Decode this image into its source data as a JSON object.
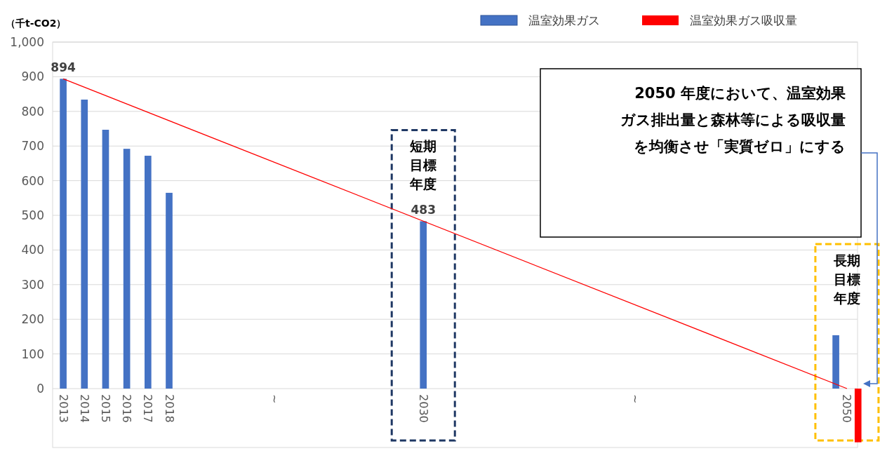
{
  "chart_data": {
    "type": "bar",
    "ylabel": "（千t-CO2）",
    "categories": [
      "2013",
      "2014",
      "2015",
      "2016",
      "2017",
      "2018",
      null,
      null,
      null,
      null,
      "~",
      null,
      null,
      null,
      null,
      null,
      null,
      "2030",
      null,
      null,
      null,
      null,
      null,
      null,
      null,
      null,
      null,
      "~",
      null,
      null,
      null,
      null,
      null,
      null,
      null,
      null,
      null,
      "2050"
    ],
    "series": [
      {
        "name": "温室効果ガス",
        "color": "#4472c4",
        "values": [
          894,
          834,
          747,
          692,
          672,
          565,
          null,
          null,
          null,
          null,
          null,
          null,
          null,
          null,
          null,
          null,
          null,
          483,
          null,
          null,
          null,
          null,
          null,
          null,
          null,
          null,
          null,
          null,
          null,
          null,
          null,
          null,
          null,
          null,
          null,
          null,
          null,
          154
        ],
        "value_labels": [
          "894",
          null,
          null,
          null,
          null,
          null,
          null,
          null,
          null,
          null,
          null,
          null,
          null,
          null,
          null,
          null,
          null,
          "483",
          null,
          null,
          null,
          null,
          null,
          null,
          null,
          null,
          null,
          null,
          null,
          null,
          null,
          null,
          null,
          null,
          null,
          null,
          null,
          null
        ]
      },
      {
        "name": "温室効果ガス吸収量",
        "color": "#ff0000",
        "values": [
          null,
          null,
          null,
          null,
          null,
          null,
          null,
          null,
          null,
          null,
          null,
          null,
          null,
          null,
          null,
          null,
          null,
          null,
          null,
          null,
          null,
          null,
          null,
          null,
          null,
          null,
          null,
          null,
          null,
          null,
          null,
          null,
          null,
          null,
          null,
          null,
          null,
          -155
        ]
      },
      {
        "type": "line",
        "color": "#ff0000",
        "values": [
          894,
          null,
          null,
          null,
          null,
          null,
          null,
          null,
          null,
          null,
          null,
          null,
          null,
          null,
          null,
          null,
          null,
          null,
          null,
          null,
          null,
          null,
          null,
          null,
          null,
          null,
          null,
          null,
          null,
          null,
          null,
          null,
          null,
          null,
          null,
          null,
          null,
          0
        ]
      }
    ],
    "ylim": [
      -170,
      1000
    ],
    "yticks": [
      0,
      100,
      200,
      300,
      400,
      500,
      600,
      700,
      800,
      900,
      {
        "value": 1000,
        "label": "1,000"
      }
    ],
    "grid": "y",
    "legend": "top right",
    "annotations": [
      "短期目標年度",
      "長期目標年度",
      "2050 年度において、温室効果ガス排出量と森林等による吸収量を均衡させ「実質ゼロ」にする"
    ]
  }
}
